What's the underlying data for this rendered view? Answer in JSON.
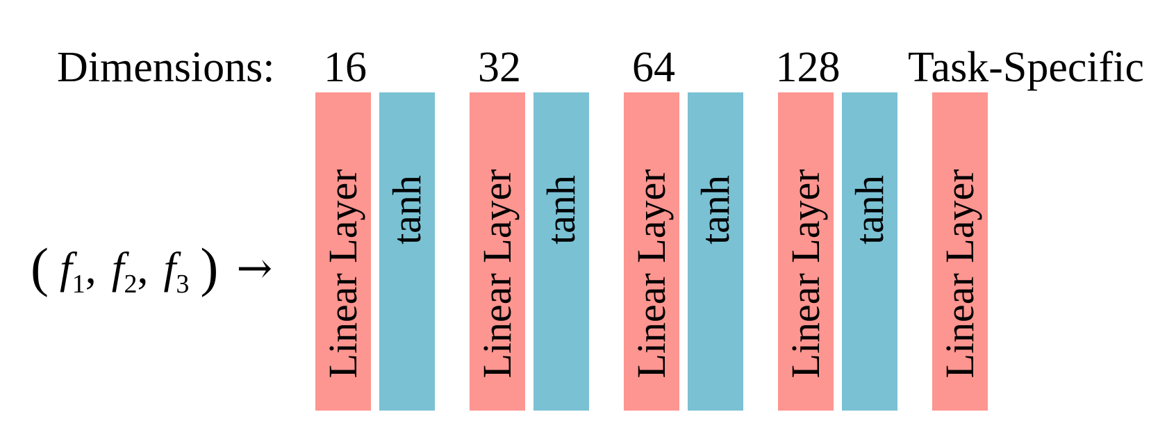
{
  "header": {
    "dimensions_label": "Dimensions:",
    "dimension_values": [
      "16",
      "32",
      "64",
      "128",
      "Task-Specific"
    ]
  },
  "input": {
    "open_paren": "(",
    "close_paren": ")",
    "variables": [
      {
        "symbol": "f",
        "subscript": "1"
      },
      {
        "symbol": "f",
        "subscript": "2"
      },
      {
        "symbol": "f",
        "subscript": "3"
      }
    ],
    "separator": ",",
    "arrow": "→"
  },
  "layers": [
    {
      "type": "linear",
      "label": "Linear Layer"
    },
    {
      "type": "tanh",
      "label": "tanh"
    },
    {
      "type": "linear",
      "label": "Linear Layer"
    },
    {
      "type": "tanh",
      "label": "tanh"
    },
    {
      "type": "linear",
      "label": "Linear Layer"
    },
    {
      "type": "tanh",
      "label": "tanh"
    },
    {
      "type": "linear",
      "label": "Linear Layer"
    },
    {
      "type": "tanh",
      "label": "tanh"
    },
    {
      "type": "linear",
      "label": "Linear Layer"
    }
  ],
  "colors": {
    "linear_layer": "#fd9590",
    "tanh_layer": "#7ac1d4",
    "text": "#000000",
    "background": "#ffffff"
  }
}
